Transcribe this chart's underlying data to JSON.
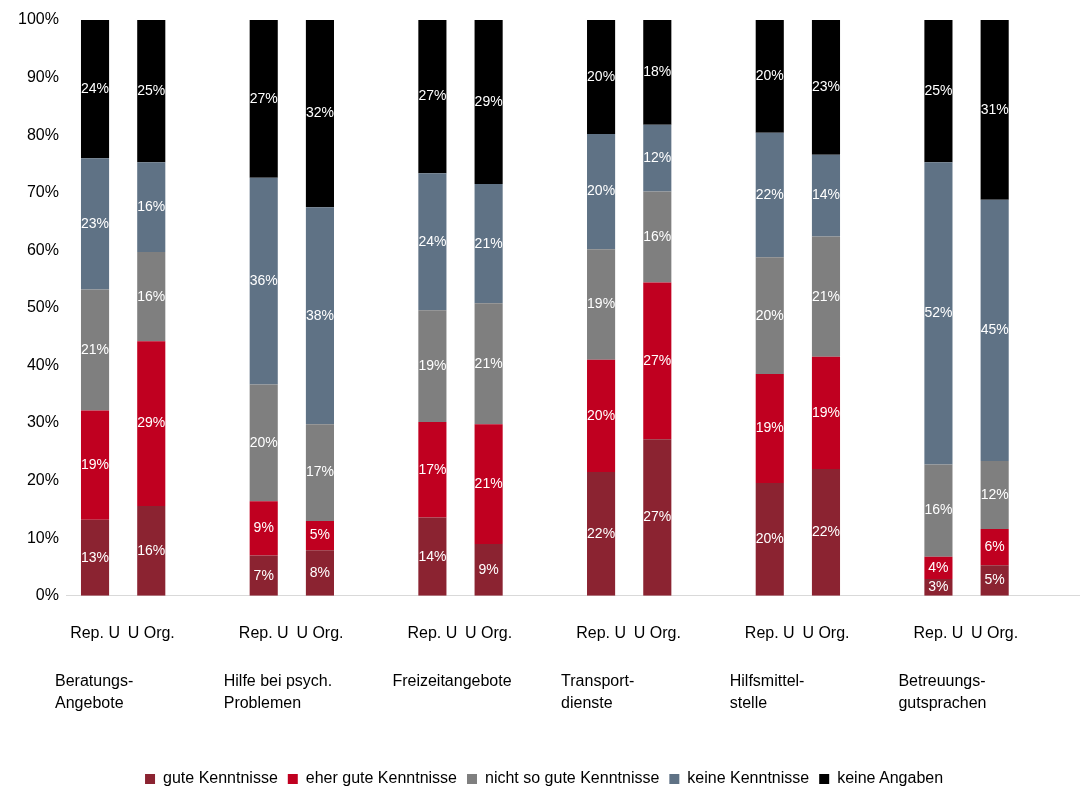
{
  "chart_data": {
    "type": "bar",
    "stacked": true,
    "categories": [
      "Rep. U",
      "U Org.",
      null,
      "Rep. U",
      "U Org.",
      null,
      "Rep. U",
      "U Org.",
      null,
      "Rep. U",
      "U Org.",
      null,
      "Rep. U",
      "U Org.",
      null,
      "Rep. U",
      "U Org.",
      null
    ],
    "series": [
      {
        "name": "gute Kenntnisse",
        "color": "#8b2331",
        "values": [
          13.2,
          15.6,
          null,
          7.0,
          7.9,
          null,
          13.6,
          9.0,
          null,
          21.5,
          27.2,
          null,
          19.6,
          22.0,
          null,
          2.9,
          5.3,
          null
        ],
        "value_labels": [
          "13%",
          "16%",
          null,
          "7%",
          "8%",
          null,
          "14%",
          "9%",
          null,
          "22%",
          "27%",
          null,
          "20%",
          "22%",
          null,
          "3%",
          "5%",
          null
        ]
      },
      {
        "name": "eher gute Kenntnisse",
        "color": "#c00020",
        "values": [
          19.0,
          28.6,
          null,
          9.4,
          5.1,
          null,
          16.6,
          20.8,
          null,
          19.5,
          27.2,
          null,
          18.9,
          19.5,
          null,
          3.9,
          6.3,
          null
        ],
        "value_labels": [
          "19%",
          "29%",
          null,
          "9%",
          "5%",
          null,
          "17%",
          "21%",
          null,
          "20%",
          "27%",
          null,
          "19%",
          "19%",
          null,
          "4%",
          "6%",
          null
        ]
      },
      {
        "name": "nicht so gute Kenntnisse",
        "color": "#7f7f7f",
        "values": [
          21.0,
          15.5,
          null,
          20.3,
          16.8,
          null,
          19.4,
          21.0,
          null,
          19.2,
          15.8,
          null,
          20.3,
          20.9,
          null,
          16.0,
          11.8,
          null
        ],
        "value_labels": [
          "21%",
          "16%",
          null,
          "20%",
          "17%",
          null,
          "19%",
          "21%",
          null,
          "19%",
          "16%",
          null,
          "20%",
          "21%",
          null,
          "16%",
          "12%",
          null
        ]
      },
      {
        "name": "keine Kenntnisse",
        "color": "#5f7285",
        "values": [
          22.8,
          15.6,
          null,
          35.9,
          37.7,
          null,
          23.8,
          20.7,
          null,
          20.0,
          11.6,
          null,
          21.6,
          14.2,
          null,
          52.5,
          45.4,
          null
        ],
        "value_labels": [
          "23%",
          "16%",
          null,
          "36%",
          "38%",
          null,
          "24%",
          "21%",
          null,
          "20%",
          "12%",
          null,
          "22%",
          "14%",
          null,
          "52%",
          "45%",
          null
        ]
      },
      {
        "name": "keine Angaben",
        "color": "#000000",
        "values": [
          24.0,
          24.7,
          null,
          27.4,
          32.5,
          null,
          26.6,
          28.5,
          null,
          19.8,
          18.2,
          null,
          19.6,
          23.4,
          null,
          24.7,
          31.2,
          null
        ],
        "value_labels": [
          "24%",
          "25%",
          null,
          "27%",
          "32%",
          null,
          "27%",
          "29%",
          null,
          "20%",
          "18%",
          null,
          "20%",
          "23%",
          null,
          "25%",
          "31%",
          null
        ]
      }
    ],
    "ylim": [
      0,
      100
    ],
    "yticks": [
      {
        "value": 0,
        "label": "0%"
      },
      {
        "value": 10,
        "label": "10%"
      },
      {
        "value": 20,
        "label": "20%"
      },
      {
        "value": 30,
        "label": "30%"
      },
      {
        "value": 40,
        "label": "40%"
      },
      {
        "value": 50,
        "label": "50%"
      },
      {
        "value": 60,
        "label": "60%"
      },
      {
        "value": 70,
        "label": "70%"
      },
      {
        "value": 80,
        "label": "80%"
      },
      {
        "value": 90,
        "label": "90%"
      },
      {
        "value": 100,
        "label": "100%"
      }
    ],
    "annotations": [
      "Beratungs-\nAngebote",
      "Hilfe bei psych.\nProblemen",
      "Freizeitangebote",
      "Transport-\ndienste",
      "Hilfsmittel-\nstelle",
      "Betreuungs-\ngutsprachen"
    ],
    "grid": false,
    "legend": "bottom"
  }
}
